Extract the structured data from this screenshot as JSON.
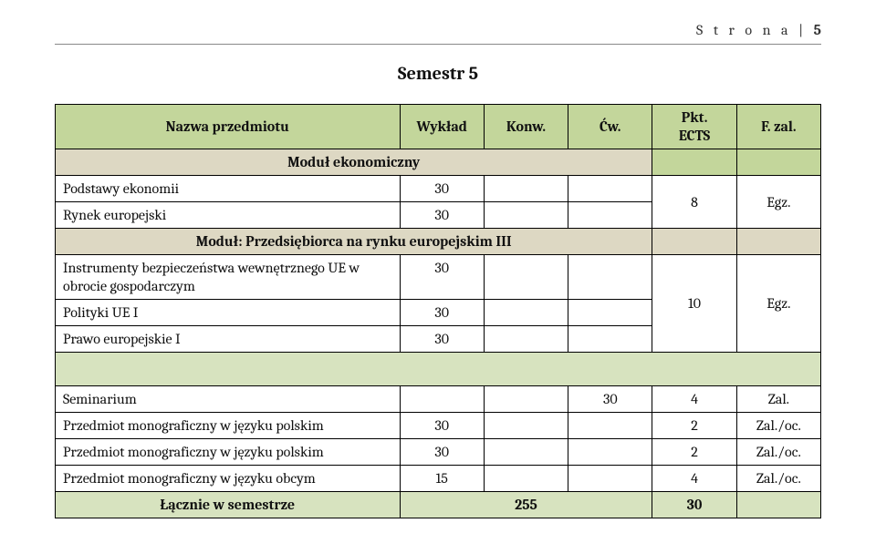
{
  "page_header": {
    "label": "S t r o n a",
    "number": "5"
  },
  "title": "Semestr  5",
  "columns": {
    "subject": "Nazwa przedmiotu",
    "lecture": "Wykład",
    "conv": "Konw.",
    "exercise": "Ćw.",
    "ects": "Pkt.",
    "ects2": "ECTS",
    "form": "F. zal."
  },
  "module_econ": "Moduł ekonomiczny",
  "row_econ1": {
    "label": "Podstawy ekonomii",
    "lecture": "30"
  },
  "row_econ2": {
    "label": "Rynek europejski",
    "lecture": "30"
  },
  "econ_ects": "8",
  "econ_form": "Egz.",
  "module_eu": "Moduł: Przedsiębiorca na rynku europejskim III",
  "row_eu1": {
    "label_l1": "Instrumenty bezpieczeństwa wewnętrznego UE w",
    "label_l2": "obrocie gospodarczym",
    "lecture": "30"
  },
  "row_eu2": {
    "label": "Polityki UE I",
    "lecture": "30"
  },
  "row_eu3": {
    "label": "Prawo europejskie I",
    "lecture": "30"
  },
  "eu_ects": "10",
  "eu_form": "Egz.",
  "after_rows": [
    {
      "label": "Seminarium",
      "exercise": "30",
      "ects": "4",
      "form": "Zal."
    },
    {
      "label": "Przedmiot monograficzny w języku polskim",
      "lecture": "30",
      "ects": "2",
      "form": "Zal./oc."
    },
    {
      "label": "Przedmiot monograficzny w języku polskim",
      "lecture": "30",
      "ects": "2",
      "form": "Zal./oc."
    },
    {
      "label": "Przedmiot monograficzny w języku obcym",
      "lecture": "15",
      "ects": "4",
      "form": "Zal./oc."
    }
  ],
  "sum": {
    "label": "Łącznie w semestrze",
    "total": "255",
    "ects": "30"
  },
  "colors": {
    "head": "#c3d69b",
    "green": "#d7e3bf",
    "tan": "#ddd8c3",
    "border": "#000000",
    "rule": "#888888",
    "text": "#111111",
    "bg": "#ffffff"
  }
}
